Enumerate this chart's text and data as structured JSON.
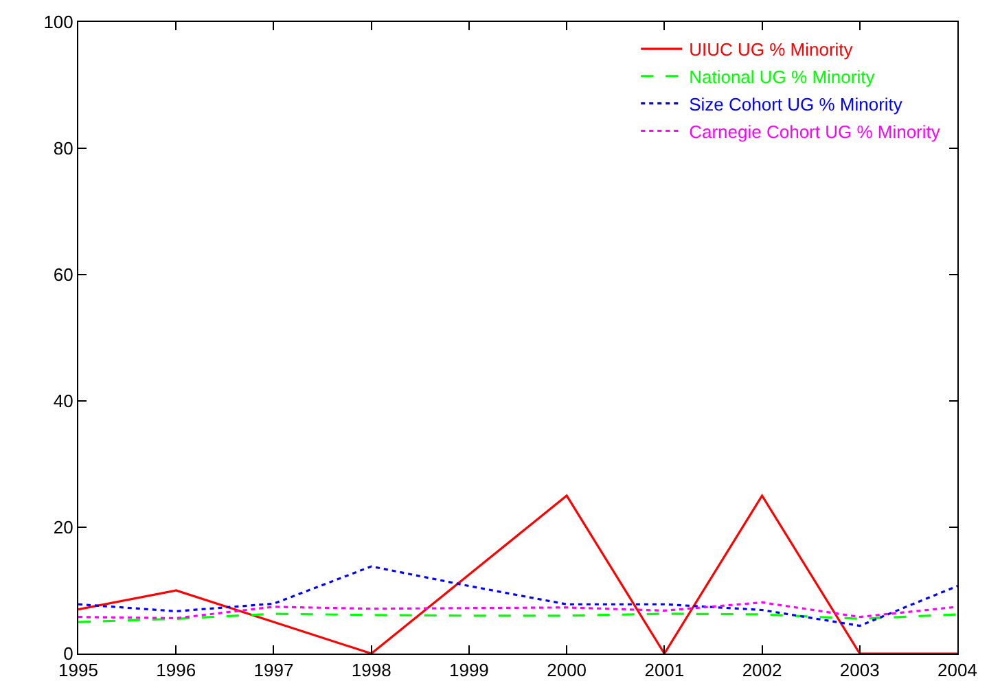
{
  "chart_data": {
    "type": "line",
    "x": [
      1995,
      1996,
      1997,
      1998,
      1999,
      2000,
      2001,
      2002,
      2003,
      2004
    ],
    "series": [
      {
        "name": "UIUC UG % Minority",
        "color": "#ff0000",
        "line_style": "solid",
        "values": [
          7,
          10,
          5,
          0,
          12.5,
          25,
          0,
          25,
          0,
          0
        ]
      },
      {
        "name": "National UG % Minority",
        "color": "#00ff00",
        "line_style": "dashed",
        "values": [
          5.0,
          5.5,
          6.3,
          6.1,
          6.0,
          6.0,
          6.3,
          6.2,
          5.5,
          6.2
        ]
      },
      {
        "name": "Size Cohort UG % Minority",
        "color": "#0000ff",
        "line_style": "dotted",
        "values": [
          7.8,
          6.7,
          7.9,
          13.8,
          10.7,
          7.8,
          7.8,
          6.9,
          4.4,
          10.7
        ]
      },
      {
        "name": "Carnegie Cohort UG % Minority",
        "color": "#ff00ff",
        "line_style": "dotted",
        "values": [
          5.8,
          5.6,
          7.4,
          7.1,
          7.2,
          7.3,
          6.8,
          8.1,
          5.8,
          7.4
        ]
      }
    ],
    "xlim": [
      1995,
      2004
    ],
    "xticks": [
      1995,
      1996,
      1997,
      1998,
      1999,
      2000,
      2001,
      2002,
      2003,
      2004
    ],
    "ylim": [
      0,
      100
    ],
    "yticks": [
      0,
      20,
      40,
      60,
      80,
      100
    ],
    "grid": false,
    "legend": "top right",
    "marker": "none"
  }
}
